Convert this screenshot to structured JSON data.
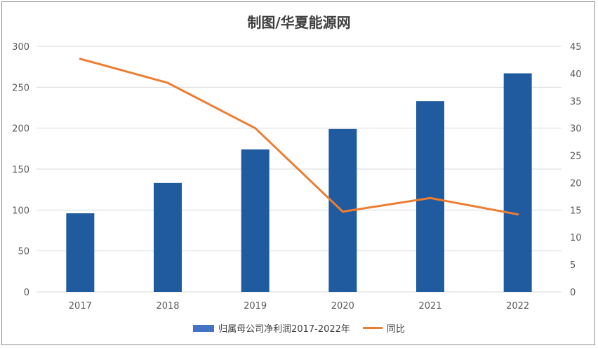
{
  "chart_data": {
    "type": "bar",
    "title": "制图/华夏能源网",
    "categories": [
      "2017",
      "2018",
      "2019",
      "2020",
      "2021",
      "2022"
    ],
    "series": [
      {
        "name": "归属母公司净利润2017-2022年",
        "type": "bar",
        "axis": "left",
        "color": "#1f5b9e",
        "legend_color": "#4472c4",
        "values": [
          96,
          133,
          174,
          199,
          233,
          267
        ]
      },
      {
        "name": "同比",
        "type": "line",
        "axis": "right",
        "color": "#ed7d31",
        "values": [
          42.7,
          38.3,
          30.0,
          14.7,
          17.2,
          14.2
        ]
      }
    ],
    "y_left": {
      "min": 0,
      "max": 300,
      "ticks": [
        "0",
        "50",
        "100",
        "150",
        "200",
        "250",
        "300"
      ]
    },
    "y_right": {
      "min": 0,
      "max": 45,
      "ticks": [
        "0",
        "5",
        "10",
        "15",
        "20",
        "25",
        "30",
        "35",
        "40",
        "45"
      ]
    },
    "grid": true,
    "legend_position": "bottom"
  }
}
